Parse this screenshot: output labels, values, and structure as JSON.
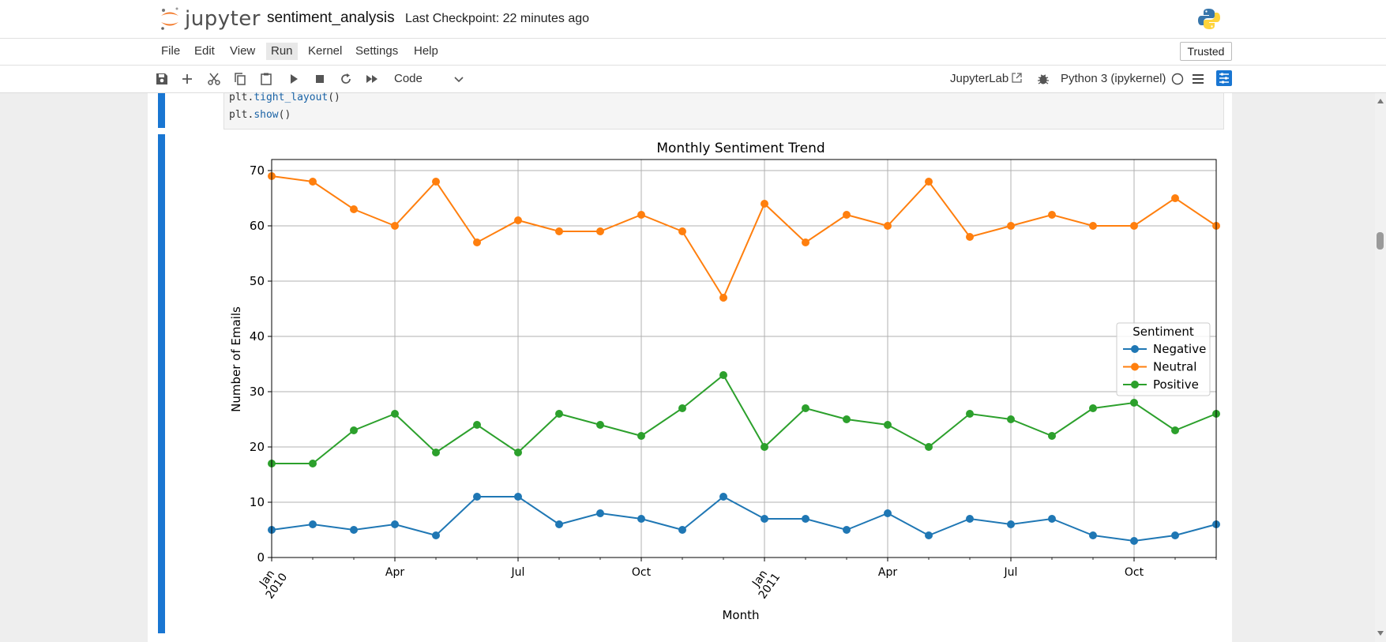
{
  "header": {
    "logo_text": "jupyter",
    "notebook_title": "sentiment_analysis",
    "checkpoint": "Last Checkpoint: 22 minutes ago"
  },
  "menu": {
    "items": [
      "File",
      "Edit",
      "View",
      "Run",
      "Kernel",
      "Settings",
      "Help"
    ],
    "active": "Run",
    "trusted_label": "Trusted"
  },
  "toolbar": {
    "cell_type": "Code",
    "jupyterlab_label": "JupyterLab",
    "kernel_name": "Python 3 (ipykernel)"
  },
  "code": {
    "line1_obj": "plt.",
    "line1_fn": "tight_layout",
    "line1_end": "()",
    "line2_obj": "plt.",
    "line2_fn": "show",
    "line2_end": "()"
  },
  "chart_data": {
    "type": "line",
    "title": "Monthly Sentiment Trend",
    "xlabel": "Month",
    "ylabel": "Number of Emails",
    "ylim": [
      0,
      72
    ],
    "yticks": [
      0,
      10,
      20,
      30,
      40,
      50,
      60,
      70
    ],
    "x": [
      "2010-01",
      "2010-02",
      "2010-03",
      "2010-04",
      "2010-05",
      "2010-06",
      "2010-07",
      "2010-08",
      "2010-09",
      "2010-10",
      "2010-11",
      "2010-12",
      "2011-01",
      "2011-02",
      "2011-03",
      "2011-04",
      "2011-05",
      "2011-06",
      "2011-07",
      "2011-08",
      "2011-09",
      "2011-10",
      "2011-11",
      "2011-12"
    ],
    "xtick_labels": [
      {
        "label": "Jan",
        "label2": "2010",
        "index": 0
      },
      {
        "label": "Apr",
        "index": 3
      },
      {
        "label": "Jul",
        "index": 6
      },
      {
        "label": "Oct",
        "index": 9
      },
      {
        "label": "Jan",
        "label2": "2011",
        "index": 12
      },
      {
        "label": "Apr",
        "index": 15
      },
      {
        "label": "Jul",
        "index": 18
      },
      {
        "label": "Oct",
        "index": 21
      }
    ],
    "legend_title": "Sentiment",
    "legend_position": "center-right",
    "grid": true,
    "series": [
      {
        "name": "Negative",
        "color": "#1f77b4",
        "values": [
          5,
          6,
          5,
          6,
          4,
          11,
          11,
          6,
          8,
          7,
          5,
          11,
          7,
          7,
          5,
          8,
          4,
          7,
          6,
          7,
          4,
          3,
          4,
          6
        ]
      },
      {
        "name": "Neutral",
        "color": "#ff7f0e",
        "values": [
          69,
          68,
          63,
          60,
          68,
          57,
          61,
          59,
          59,
          62,
          59,
          47,
          64,
          57,
          62,
          60,
          68,
          58,
          60,
          62,
          60,
          60,
          65,
          60
        ]
      },
      {
        "name": "Positive",
        "color": "#2ca02c",
        "values": [
          17,
          17,
          23,
          26,
          19,
          24,
          19,
          26,
          24,
          22,
          27,
          33,
          20,
          27,
          25,
          24,
          20,
          26,
          25,
          22,
          27,
          28,
          23,
          26
        ]
      }
    ]
  }
}
